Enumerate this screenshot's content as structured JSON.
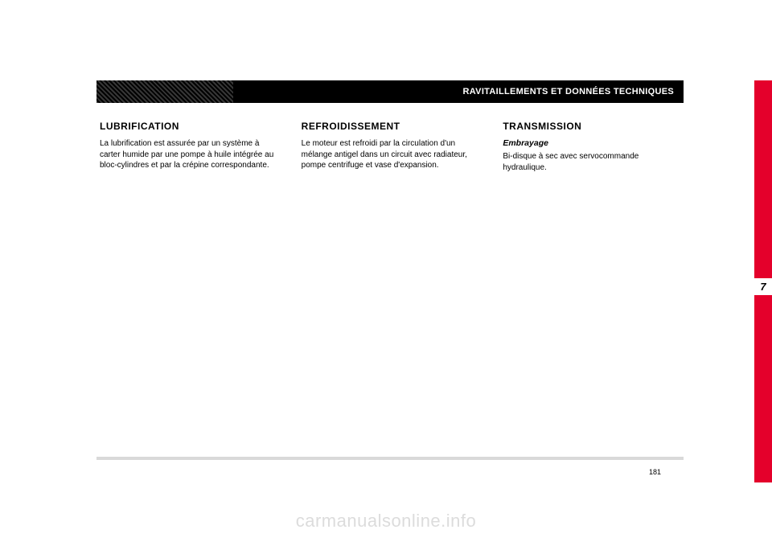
{
  "header": {
    "title": "RAVITAILLEMENTS ET DONNÉES TECHNIQUES"
  },
  "chapter_number": "7",
  "page_number": "181",
  "columns": {
    "lubrification": {
      "title": "LUBRIFICATION",
      "body": "La lubrification est assurée par un système à carter humide par une pompe à huile intégrée au bloc-cylindres et par la crépine correspondante."
    },
    "refroidissement": {
      "title": "REFROIDISSEMENT",
      "body": "Le moteur est refroidi par la circulation d'un mélange antigel dans un circuit avec radiateur, pompe centrifuge et vase d'expansion."
    },
    "transmission": {
      "title": "TRANSMISSION",
      "subtitle": "Embrayage",
      "body": "Bi-disque à sec avec servocommande hydraulique."
    }
  },
  "watermark": "carmanualsonline.info",
  "colors": {
    "accent_red": "#e4002b",
    "header_bg": "#000000",
    "header_text": "#ffffff",
    "rule_gray": "#d9d9d9",
    "watermark_gray": "#dcdcdc",
    "body_text": "#000000",
    "page_bg": "#ffffff"
  }
}
